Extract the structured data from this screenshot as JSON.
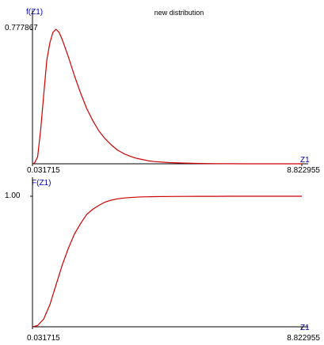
{
  "chart_data": [
    {
      "type": "line",
      "title": "new distribution",
      "ylabel": "f(Z1)",
      "xlabel": "Z1",
      "xlim": [
        0.031715,
        8.822955
      ],
      "ylim": [
        0,
        0.777867
      ],
      "xtick_labels": [
        "0.031715",
        "8.822955"
      ],
      "ytick_labels": [
        "0.777867"
      ],
      "colors": {
        "axis": "#000000",
        "label": "#0000aa",
        "line": "#cc0000"
      },
      "grid": false,
      "x": [
        0.0317,
        0.1,
        0.2,
        0.3,
        0.4,
        0.5,
        0.6,
        0.7,
        0.8,
        0.9,
        1.0,
        1.2,
        1.4,
        1.6,
        1.8,
        2.0,
        2.2,
        2.4,
        2.6,
        2.8,
        3.0,
        3.2,
        3.4,
        3.6,
        3.8,
        4.0,
        4.5,
        5.0,
        5.5,
        6.0,
        6.5,
        7.0,
        7.5,
        8.0,
        8.823
      ],
      "y": [
        0.0,
        0.005,
        0.04,
        0.2,
        0.4,
        0.6,
        0.7,
        0.76,
        0.7779,
        0.76,
        0.72,
        0.62,
        0.51,
        0.41,
        0.32,
        0.25,
        0.19,
        0.145,
        0.11,
        0.08,
        0.06,
        0.045,
        0.033,
        0.025,
        0.018,
        0.013,
        0.007,
        0.004,
        0.002,
        0.001,
        0.0005,
        0.0002,
        0.0001,
        0.0,
        0.0
      ]
    },
    {
      "type": "line",
      "ylabel": "F(Z1)",
      "xlabel": "Z1",
      "xlim": [
        0.031715,
        8.822955
      ],
      "ylim": [
        0,
        1.0
      ],
      "xtick_labels": [
        "0.031715",
        "8.822955"
      ],
      "ytick_labels": [
        "1.00"
      ],
      "colors": {
        "axis": "#000000",
        "label": "#0000aa",
        "line": "#cc0000"
      },
      "grid": false,
      "x": [
        0.0317,
        0.2,
        0.4,
        0.6,
        0.8,
        1.0,
        1.2,
        1.4,
        1.6,
        1.8,
        2.0,
        2.2,
        2.4,
        2.6,
        2.8,
        3.0,
        3.2,
        3.4,
        3.6,
        3.8,
        4.0,
        4.5,
        5.0,
        5.5,
        6.0,
        6.5,
        7.0,
        7.5,
        8.0,
        8.823
      ],
      "y": [
        0.0,
        0.01,
        0.06,
        0.17,
        0.32,
        0.47,
        0.6,
        0.71,
        0.79,
        0.86,
        0.9,
        0.93,
        0.955,
        0.97,
        0.98,
        0.986,
        0.99,
        0.993,
        0.995,
        0.996,
        0.997,
        0.998,
        0.999,
        0.9993,
        0.9995,
        0.9997,
        0.9998,
        0.9999,
        1.0,
        1.0
      ]
    }
  ]
}
